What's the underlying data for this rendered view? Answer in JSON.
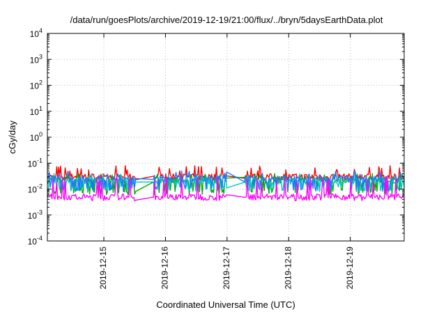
{
  "chart_data": {
    "type": "line",
    "title": "/data/run/goesPlots/archive/2019-12-19/21:00/flux/../bryn/5daysEarthData.plot",
    "xlabel": "Coordinated Universal Time (UTC)",
    "ylabel": "cGy/day",
    "yscale": "log",
    "ylim": [
      0.0001,
      10000
    ],
    "y_ticks": [
      {
        "base": "10",
        "exp": "-4",
        "value": 0.0001
      },
      {
        "base": "10",
        "exp": "-3",
        "value": 0.001
      },
      {
        "base": "10",
        "exp": "-2",
        "value": 0.01
      },
      {
        "base": "10",
        "exp": "-1",
        "value": 0.1
      },
      {
        "base": "10",
        "exp": "0",
        "value": 1
      },
      {
        "base": "10",
        "exp": "1",
        "value": 10
      },
      {
        "base": "10",
        "exp": "2",
        "value": 100
      },
      {
        "base": "10",
        "exp": "3",
        "value": 1000
      },
      {
        "base": "10",
        "exp": "4",
        "value": 10000
      }
    ],
    "xlim": [
      "2019-12-14 02:00",
      "2019-12-19 21:00"
    ],
    "x_ticks": [
      {
        "label": "2019-12-15",
        "date": "2019-12-15 00:00"
      },
      {
        "label": "2019-12-16",
        "date": "2019-12-16 00:00"
      },
      {
        "label": "2019-12-17",
        "date": "2019-12-17 00:00"
      },
      {
        "label": "2019-12-18",
        "date": "2019-12-18 00:00"
      },
      {
        "label": "2019-12-19",
        "date": "2019-12-19 00:00"
      }
    ],
    "grid": true,
    "data_gaps": [
      [
        "2019-12-15 12:30",
        "2019-12-15 19:00"
      ],
      [
        "2019-12-17 00:00",
        "2019-12-17 06:30"
      ]
    ],
    "series": [
      {
        "color": "#ff0000",
        "baseline": 0.03,
        "min": 0.02,
        "max": 0.08
      },
      {
        "color": "#00aa00",
        "baseline": 0.022,
        "min": 0.006,
        "max": 0.04
      },
      {
        "color": "#00c8c8",
        "baseline": 0.02,
        "min": 0.008,
        "max": 0.04
      },
      {
        "color": "#1e78ff",
        "baseline": 0.025,
        "min": 0.008,
        "max": 0.05
      },
      {
        "color": "#ff00ff",
        "baseline": 0.005,
        "min": 0.0035,
        "max": 0.03
      }
    ]
  }
}
